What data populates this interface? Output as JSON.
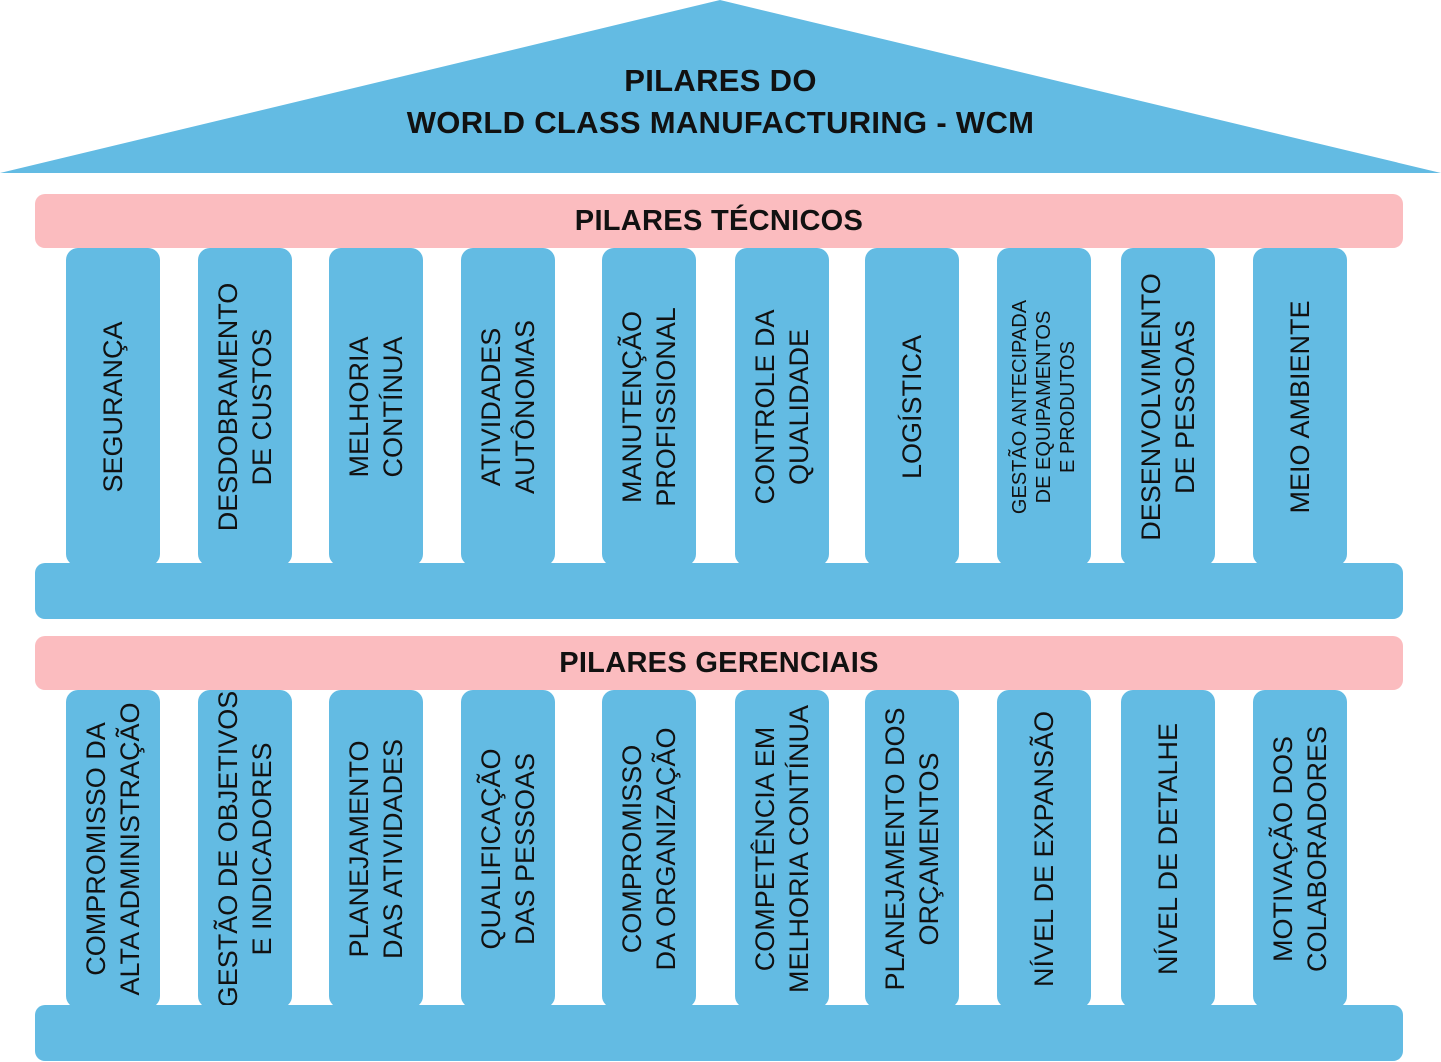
{
  "title": {
    "line1": "PILARES DO",
    "line2": "WORLD CLASS MANUFACTURING - WCM"
  },
  "colors": {
    "pillar": "#63bbe3",
    "beam": "#fbbcbf",
    "text": "#111111"
  },
  "technical": {
    "label": "PILARES TÉCNICOS",
    "pillars": [
      {
        "lines": [
          "SEGURANÇA"
        ]
      },
      {
        "lines": [
          "DESDOBRAMENTO",
          "DE CUSTOS"
        ]
      },
      {
        "lines": [
          "MELHORIA",
          "CONTÍNUA"
        ]
      },
      {
        "lines": [
          "ATIVIDADES",
          "AUTÔNOMAS"
        ]
      },
      {
        "lines": [
          "MANUTENÇÃO",
          "PROFISSIONAL"
        ]
      },
      {
        "lines": [
          "CONTROLE DA",
          "QUALIDADE"
        ]
      },
      {
        "lines": [
          "LOGÍSTICA"
        ]
      },
      {
        "lines": [
          "GESTÃO ANTECIPADA",
          "DE EQUIPAMENTOS",
          "E PRODUTOS"
        ]
      },
      {
        "lines": [
          "DESENVOLVIMENTO",
          "DE PESSOAS"
        ]
      },
      {
        "lines": [
          "MEIO AMBIENTE"
        ]
      }
    ]
  },
  "managerial": {
    "label": "PILARES GERENCIAIS",
    "pillars": [
      {
        "lines": [
          "COMPROMISSO DA",
          "ALTA ADMINISTRAÇÃO"
        ]
      },
      {
        "lines": [
          "GESTÃO DE OBJETIVOS",
          "E INDICADORES"
        ]
      },
      {
        "lines": [
          "PLANEJAMENTO",
          "DAS ATIVIDADES"
        ]
      },
      {
        "lines": [
          "QUALIFICAÇÃO",
          "DAS PESSOAS"
        ]
      },
      {
        "lines": [
          "COMPROMISSO",
          "DA ORGANIZAÇÃO"
        ]
      },
      {
        "lines": [
          "COMPETÊNCIA EM",
          "MELHORIA CONTÍNUA"
        ]
      },
      {
        "lines": [
          "PLANEJAMENTO DOS",
          "ORÇAMENTOS"
        ]
      },
      {
        "lines": [
          "NÍVEL DE EXPANSÃO"
        ]
      },
      {
        "lines": [
          "NÍVEL DE DETALHE"
        ]
      },
      {
        "lines": [
          "MOTIVAÇÃO DOS",
          "COLABORADORES"
        ]
      }
    ]
  }
}
